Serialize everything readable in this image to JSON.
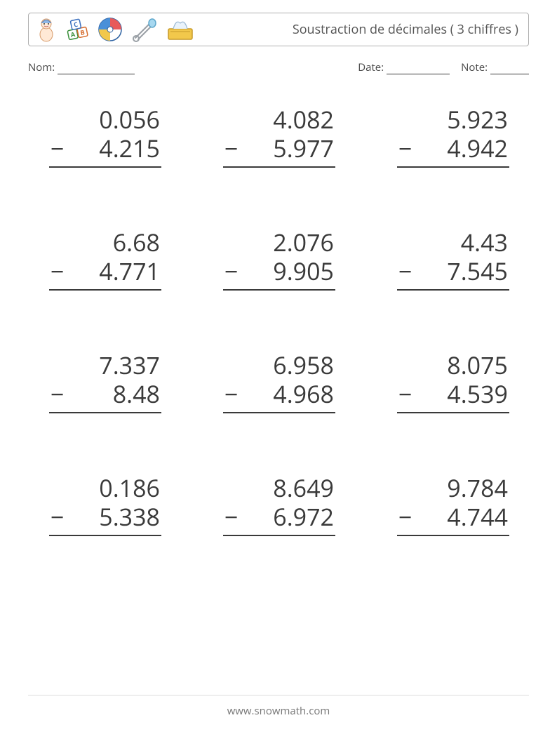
{
  "header": {
    "title": "Soustraction de décimales ( 3 chiffres )",
    "icons": [
      "baby",
      "blocks",
      "ball",
      "pin",
      "tissues"
    ]
  },
  "meta": {
    "name_label": "Nom:",
    "date_label": "Date:",
    "note_label": "Note:",
    "name_blank_width": 110,
    "date_blank_width": 90,
    "note_blank_width": 55
  },
  "style": {
    "page_bg": "#ffffff",
    "text_color": "#3a3a3a",
    "border_color": "#b0b0b0",
    "title_color": "#555555",
    "footer_color": "#777777",
    "problem_fontsize": 34,
    "columns": 3,
    "rows": 4
  },
  "problems": [
    {
      "a": "0.056",
      "b": "4.215"
    },
    {
      "a": "4.082",
      "b": "5.977"
    },
    {
      "a": "5.923",
      "b": "4.942"
    },
    {
      "a": "6.68",
      "b": "4.771"
    },
    {
      "a": "2.076",
      "b": "9.905"
    },
    {
      "a": "4.43",
      "b": "7.545"
    },
    {
      "a": "7.337",
      "b": "8.48"
    },
    {
      "a": "6.958",
      "b": "4.968"
    },
    {
      "a": "8.075",
      "b": "4.539"
    },
    {
      "a": "0.186",
      "b": "5.338"
    },
    {
      "a": "8.649",
      "b": "6.972"
    },
    {
      "a": "9.784",
      "b": "4.744"
    }
  ],
  "operator": "−",
  "footer": {
    "text": "www.snowmath.com"
  }
}
